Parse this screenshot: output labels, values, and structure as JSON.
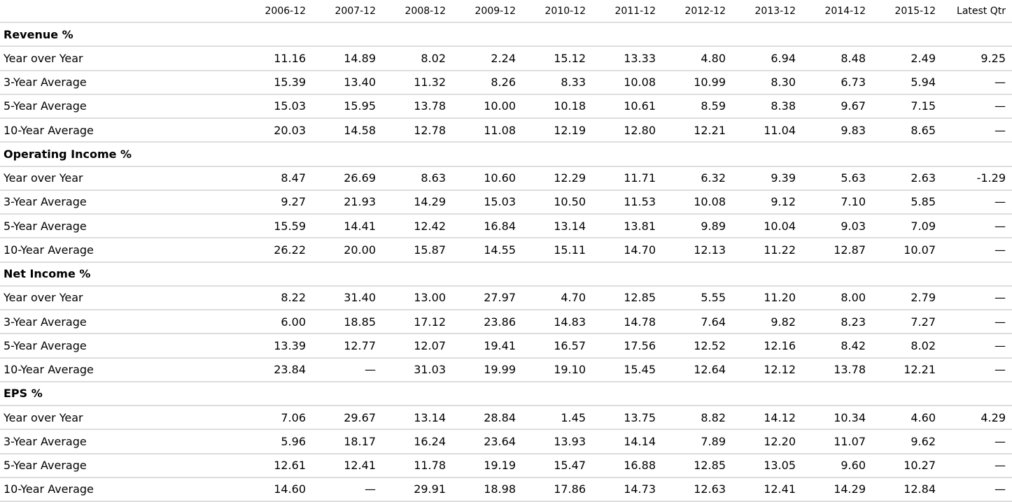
{
  "header": {
    "columns": [
      "2006-12",
      "2007-12",
      "2008-12",
      "2009-12",
      "2010-12",
      "2011-12",
      "2012-12",
      "2013-12",
      "2014-12",
      "2015-12",
      "Latest Qtr"
    ]
  },
  "sections": [
    {
      "title": "Revenue %",
      "rows": [
        {
          "label": "Year over Year",
          "values": [
            "11.16",
            "14.89",
            "8.02",
            "2.24",
            "15.12",
            "13.33",
            "4.80",
            "6.94",
            "8.48",
            "2.49",
            "9.25"
          ]
        },
        {
          "label": "3-Year Average",
          "values": [
            "15.39",
            "13.40",
            "11.32",
            "8.26",
            "8.33",
            "10.08",
            "10.99",
            "8.30",
            "6.73",
            "5.94",
            "—"
          ]
        },
        {
          "label": "5-Year Average",
          "values": [
            "15.03",
            "15.95",
            "13.78",
            "10.00",
            "10.18",
            "10.61",
            "8.59",
            "8.38",
            "9.67",
            "7.15",
            "—"
          ]
        },
        {
          "label": "10-Year Average",
          "values": [
            "20.03",
            "14.58",
            "12.78",
            "11.08",
            "12.19",
            "12.80",
            "12.21",
            "11.04",
            "9.83",
            "8.65",
            "—"
          ]
        }
      ]
    },
    {
      "title": "Operating Income %",
      "rows": [
        {
          "label": "Year over Year",
          "values": [
            "8.47",
            "26.69",
            "8.63",
            "10.60",
            "12.29",
            "11.71",
            "6.32",
            "9.39",
            "5.63",
            "2.63",
            "-1.29"
          ]
        },
        {
          "label": "3-Year Average",
          "values": [
            "9.27",
            "21.93",
            "14.29",
            "15.03",
            "10.50",
            "11.53",
            "10.08",
            "9.12",
            "7.10",
            "5.85",
            "—"
          ]
        },
        {
          "label": "5-Year Average",
          "values": [
            "15.59",
            "14.41",
            "12.42",
            "16.84",
            "13.14",
            "13.81",
            "9.89",
            "10.04",
            "9.03",
            "7.09",
            "—"
          ]
        },
        {
          "label": "10-Year Average",
          "values": [
            "26.22",
            "20.00",
            "15.87",
            "14.55",
            "15.11",
            "14.70",
            "12.13",
            "11.22",
            "12.87",
            "10.07",
            "—"
          ]
        }
      ]
    },
    {
      "title": "Net Income %",
      "rows": [
        {
          "label": "Year over Year",
          "values": [
            "8.22",
            "31.40",
            "13.00",
            "27.97",
            "4.70",
            "12.85",
            "5.55",
            "11.20",
            "8.00",
            "2.79",
            "—"
          ]
        },
        {
          "label": "3-Year Average",
          "values": [
            "6.00",
            "18.85",
            "17.12",
            "23.86",
            "14.83",
            "14.78",
            "7.64",
            "9.82",
            "8.23",
            "7.27",
            "—"
          ]
        },
        {
          "label": "5-Year Average",
          "values": [
            "13.39",
            "12.77",
            "12.07",
            "19.41",
            "16.57",
            "17.56",
            "12.52",
            "12.16",
            "8.42",
            "8.02",
            "—"
          ]
        },
        {
          "label": "10-Year Average",
          "values": [
            "23.84",
            "—",
            "31.03",
            "19.99",
            "19.10",
            "15.45",
            "12.64",
            "12.12",
            "13.78",
            "12.21",
            "—"
          ]
        }
      ]
    },
    {
      "title": "EPS %",
      "rows": [
        {
          "label": "Year over Year",
          "values": [
            "7.06",
            "29.67",
            "13.14",
            "28.84",
            "1.45",
            "13.75",
            "8.82",
            "14.12",
            "10.34",
            "4.60",
            "4.29"
          ]
        },
        {
          "label": "3-Year Average",
          "values": [
            "5.96",
            "18.17",
            "16.24",
            "23.64",
            "13.93",
            "14.14",
            "7.89",
            "12.20",
            "11.07",
            "9.62",
            "—"
          ]
        },
        {
          "label": "5-Year Average",
          "values": [
            "12.61",
            "12.41",
            "11.78",
            "19.19",
            "15.47",
            "16.88",
            "12.85",
            "13.05",
            "9.60",
            "10.27",
            "—"
          ]
        },
        {
          "label": "10-Year Average",
          "values": [
            "14.60",
            "—",
            "29.91",
            "18.98",
            "17.86",
            "14.73",
            "12.63",
            "12.41",
            "14.29",
            "12.84",
            "—"
          ]
        }
      ]
    }
  ]
}
